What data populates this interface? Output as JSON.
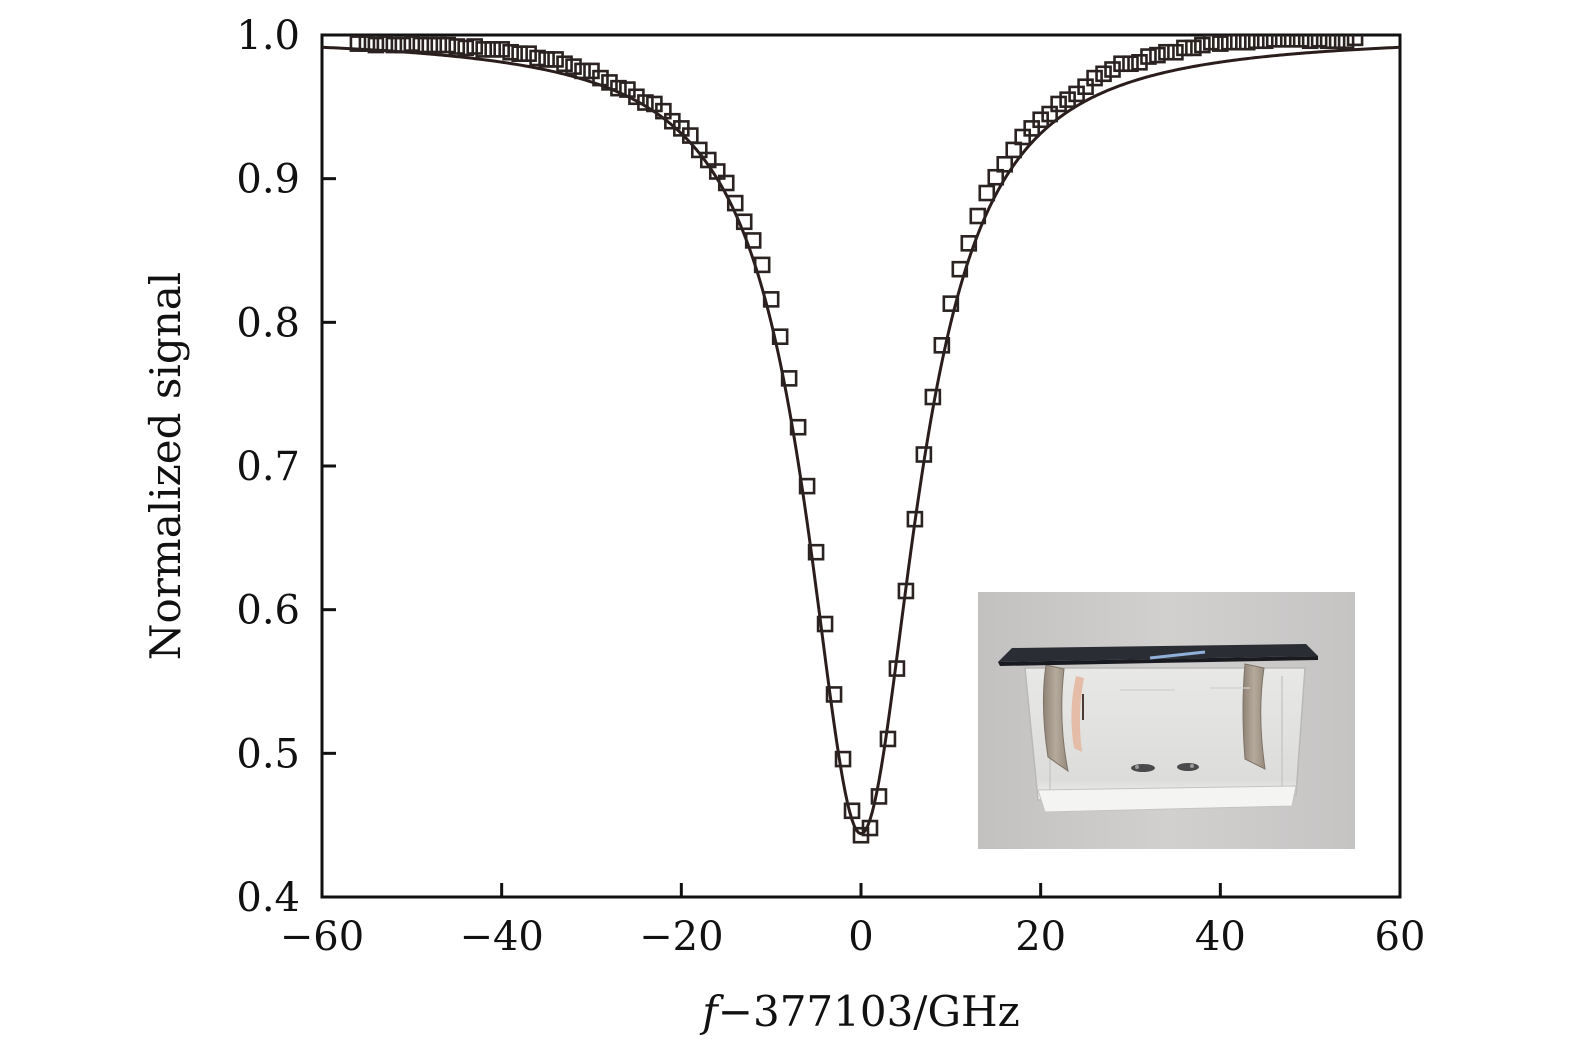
{
  "chart_data": {
    "type": "scatter",
    "title": "",
    "xlabel_var": "f",
    "xlabel_rest": "−377103/GHz",
    "ylabel": "Normalized signal",
    "xlim": [
      -60,
      60
    ],
    "ylim": [
      0.4,
      1.0
    ],
    "xticks": [
      -60,
      -40,
      -20,
      0,
      20,
      40,
      60
    ],
    "xtick_labels": [
      "−60",
      "−40",
      "−20",
      "0",
      "20",
      "40",
      "60"
    ],
    "yticks": [
      0.4,
      0.5,
      0.6,
      0.7,
      0.8,
      0.9,
      1.0
    ],
    "ytick_labels": [
      "0.4",
      "0.5",
      "0.6",
      "0.7",
      "0.8",
      "0.9",
      "1.0"
    ],
    "grid": false,
    "series": [
      {
        "kind": "markers",
        "marker": "open-square",
        "x": [
          -56,
          -55,
          -54,
          -53,
          -52,
          -51,
          -50,
          -49,
          -48,
          -47,
          -46,
          -45,
          -44,
          -43,
          -42,
          -41,
          -40,
          -39,
          -38,
          -37,
          -36,
          -35,
          -34,
          -33,
          -32,
          -31,
          -30,
          -29,
          -28,
          -27,
          -26,
          -25,
          -24,
          -23,
          -22,
          -21,
          -20,
          -19,
          -18,
          -17,
          -16,
          -15,
          -14,
          -13,
          -12,
          -11,
          -10,
          -9,
          -8,
          -7,
          -6,
          -5,
          -4,
          -3,
          -2,
          -1,
          0,
          1,
          2,
          3,
          4,
          5,
          6,
          7,
          8,
          9,
          10,
          11,
          12,
          13,
          14,
          15,
          16,
          17,
          18,
          19,
          20,
          21,
          22,
          23,
          24,
          25,
          26,
          27,
          28,
          29,
          30,
          31,
          32,
          33,
          34,
          35,
          36,
          37,
          38,
          39,
          40,
          41,
          42,
          43,
          44,
          45,
          46,
          47,
          48,
          49,
          50,
          51,
          52,
          53,
          54,
          55
        ],
        "y": [
          0.994,
          0.994,
          0.993,
          0.994,
          0.993,
          0.993,
          0.994,
          0.993,
          0.993,
          0.993,
          0.993,
          0.992,
          0.991,
          0.992,
          0.99,
          0.99,
          0.99,
          0.988,
          0.987,
          0.987,
          0.984,
          0.983,
          0.983,
          0.98,
          0.978,
          0.975,
          0.975,
          0.97,
          0.967,
          0.963,
          0.962,
          0.957,
          0.953,
          0.952,
          0.947,
          0.94,
          0.935,
          0.93,
          0.92,
          0.913,
          0.905,
          0.897,
          0.883,
          0.87,
          0.857,
          0.84,
          0.816,
          0.79,
          0.761,
          0.727,
          0.686,
          0.64,
          0.59,
          0.541,
          0.496,
          0.46,
          0.443,
          0.448,
          0.47,
          0.51,
          0.559,
          0.613,
          0.663,
          0.708,
          0.748,
          0.784,
          0.813,
          0.837,
          0.855,
          0.874,
          0.89,
          0.901,
          0.91,
          0.92,
          0.929,
          0.935,
          0.941,
          0.945,
          0.952,
          0.955,
          0.959,
          0.964,
          0.97,
          0.973,
          0.976,
          0.98,
          0.98,
          0.981,
          0.985,
          0.986,
          0.988,
          0.988,
          0.991,
          0.991,
          0.993,
          0.995,
          0.994,
          0.995,
          0.995,
          0.995,
          0.996,
          0.996,
          0.997,
          0.997,
          0.997,
          0.997,
          0.996,
          0.997,
          0.996,
          0.996,
          0.996,
          0.998
        ]
      },
      {
        "kind": "fit-line",
        "model": "lorentzian",
        "center": 0,
        "depth": 0.556,
        "half_width": 7.5,
        "baseline": 1.0
      }
    ],
    "inset": {
      "content": "photograph of a glass vapor cell with a dark cover plate and two metal clamps",
      "colors": {
        "background": "#c9c7c6",
        "plate": "#2b2d35",
        "glass": "#e3e4e2",
        "clamp": "#a89c8e"
      }
    }
  }
}
